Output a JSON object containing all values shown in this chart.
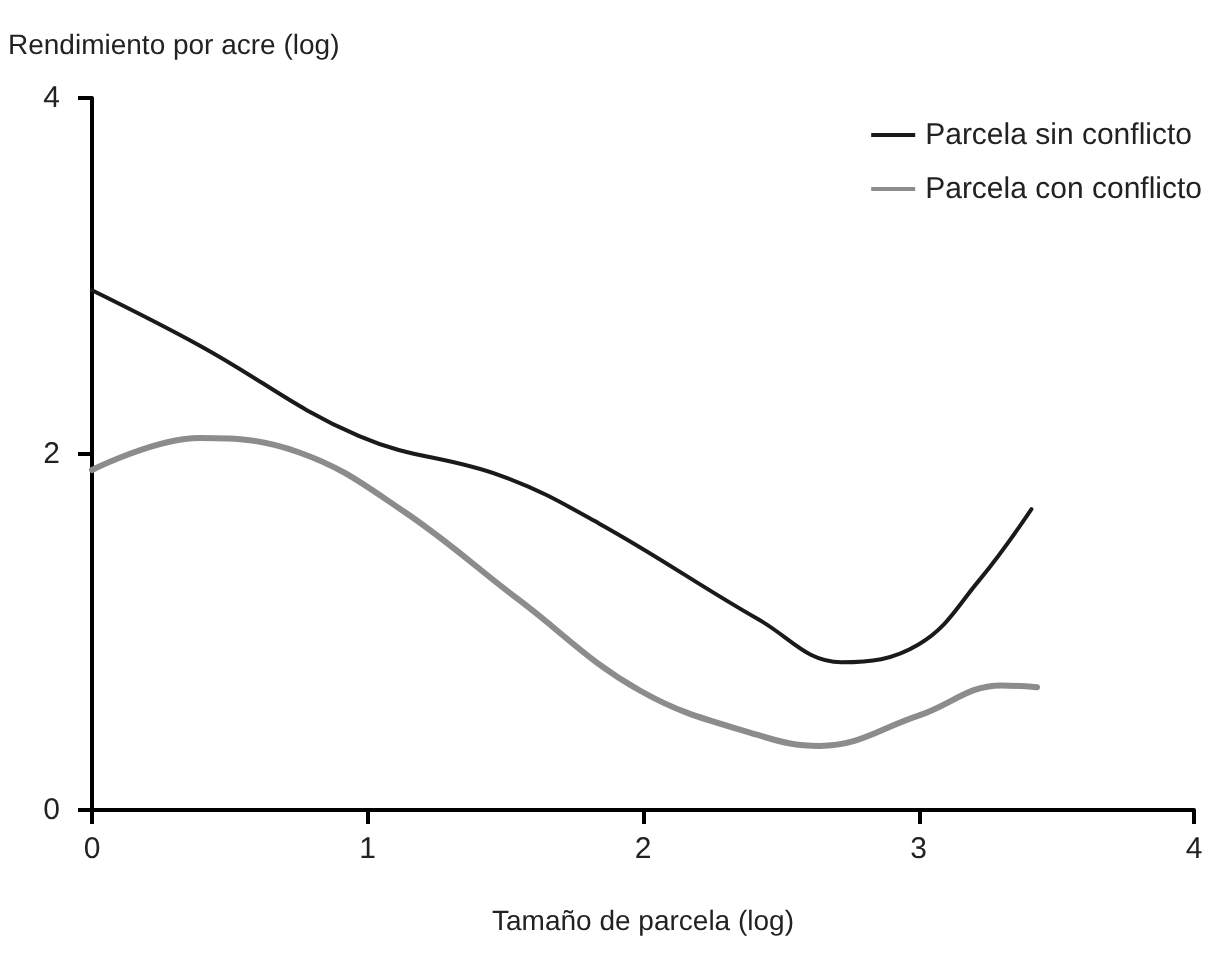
{
  "chart_data": {
    "type": "line",
    "xlabel": "Tamaño de parcela (log)",
    "ylabel": "Rendimiento por acre (log)",
    "xlim": [
      0,
      4
    ],
    "xticks": [
      0,
      1,
      2,
      3,
      4
    ],
    "ylim": [
      0,
      4
    ],
    "yticks": [
      0,
      2,
      4
    ],
    "grid": false,
    "legend": "top right",
    "marker": "none",
    "line_style": "solid",
    "series": [
      {
        "name": "Parcela sin conflicto",
        "color": "#1a1a1a",
        "x": [
          0,
          0.39,
          0.97,
          1.48,
          1.84,
          2.42,
          2.72,
          3.0,
          3.22,
          3.41
        ],
        "values": [
          2.92,
          2.61,
          2.1,
          1.88,
          1.61,
          1.07,
          0.83,
          0.93,
          1.29,
          1.69
        ]
      },
      {
        "name": "Parcela con conflicto",
        "color": "#8c8c8c",
        "x": [
          0,
          0.39,
          0.75,
          1.12,
          1.55,
          1.99,
          2.42,
          2.64,
          3.0,
          3.3,
          3.43
        ],
        "values": [
          1.91,
          2.09,
          2.01,
          1.69,
          1.18,
          0.67,
          0.42,
          0.36,
          0.53,
          0.7,
          0.69
        ]
      }
    ]
  }
}
